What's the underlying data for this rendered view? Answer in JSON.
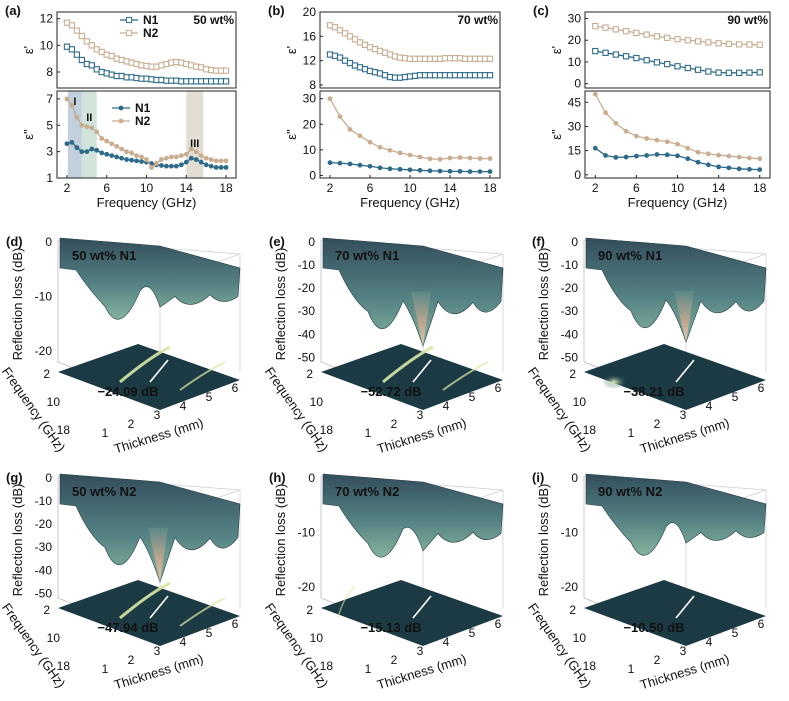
{
  "colors": {
    "n1": "#2e6b8a",
    "n2": "#c9ad90",
    "shade_I": "#b7c8d8",
    "shade_II": "#c8dfd6",
    "shade_III": "#ded8cc",
    "surface_dark": "#2d4a56",
    "surface_mid": "#5f8f8a",
    "surface_light": "#d9c2a4",
    "floor": "#1c3a44",
    "floor_glow": "#d8e8a6"
  },
  "line_panels": [
    {
      "label": "(a)",
      "wt": "50 wt%",
      "top": {
        "ylabel": "ε'",
        "yticks": [
          "8",
          "10",
          "12"
        ],
        "ymin": 6.8,
        "ymax": 12.5,
        "legend": [
          "N1",
          "N2"
        ],
        "series": [
          {
            "name": "N1",
            "x": [
              2,
              2.5,
              3,
              3.5,
              4,
              4.5,
              5,
              5.5,
              6,
              6.5,
              7,
              7.5,
              8,
              8.5,
              9,
              9.5,
              10,
              10.5,
              11,
              11.5,
              12,
              12.5,
              13,
              13.5,
              14,
              14.5,
              15,
              15.5,
              16,
              16.5,
              17,
              17.5,
              18
            ],
            "y": [
              9.9,
              9.7,
              9.3,
              8.9,
              8.6,
              8.5,
              8.2,
              8.0,
              7.9,
              7.8,
              7.7,
              7.7,
              7.6,
              7.6,
              7.55,
              7.5,
              7.5,
              7.45,
              7.4,
              7.4,
              7.35,
              7.35,
              7.35,
              7.3,
              7.3,
              7.3,
              7.3,
              7.3,
              7.3,
              7.3,
              7.3,
              7.3,
              7.3
            ]
          },
          {
            "name": "N2",
            "x": [
              2,
              2.5,
              3,
              3.5,
              4,
              4.5,
              5,
              5.5,
              6,
              6.5,
              7,
              7.5,
              8,
              8.5,
              9,
              9.5,
              10,
              10.5,
              11,
              11.5,
              12,
              12.5,
              13,
              13.5,
              14,
              14.5,
              15,
              15.5,
              16,
              16.5,
              17,
              17.5,
              18
            ],
            "y": [
              11.7,
              11.5,
              11.1,
              10.7,
              10.3,
              10.0,
              9.7,
              9.5,
              9.3,
              9.2,
              9.0,
              8.9,
              8.8,
              8.7,
              8.6,
              8.5,
              8.45,
              8.4,
              8.4,
              8.5,
              8.6,
              8.7,
              8.75,
              8.7,
              8.6,
              8.5,
              8.4,
              8.35,
              8.2,
              8.15,
              8.1,
              8.1,
              8.1
            ]
          }
        ]
      },
      "bottom": {
        "ylabel": "ε\"",
        "yticks": [
          "1",
          "3",
          "5",
          "7"
        ],
        "ymin": 1,
        "ymax": 7.6,
        "legend": [
          "N1",
          "N2"
        ],
        "regions": [
          {
            "label": "I",
            "x0": 2.1,
            "x1": 3.5,
            "color": "shade_I"
          },
          {
            "label": "II",
            "x0": 3.5,
            "x1": 5.0,
            "color": "shade_II"
          },
          {
            "label": "III",
            "x0": 14.0,
            "x1": 15.7,
            "color": "shade_III"
          }
        ],
        "series": [
          {
            "name": "N1",
            "x": [
              2,
              2.5,
              3,
              3.5,
              4,
              4.5,
              5,
              5.5,
              6,
              6.5,
              7,
              7.5,
              8,
              8.5,
              9,
              9.5,
              10,
              10.5,
              11,
              11.5,
              12,
              12.5,
              13,
              13.5,
              14,
              14.5,
              15,
              15.5,
              16,
              16.5,
              17,
              17.5,
              18
            ],
            "y": [
              3.6,
              3.7,
              3.3,
              3.0,
              3.0,
              3.2,
              3.1,
              2.9,
              2.8,
              2.7,
              2.6,
              2.5,
              2.4,
              2.35,
              2.3,
              2.25,
              2.2,
              2.1,
              2.0,
              1.95,
              1.9,
              1.9,
              1.9,
              2.0,
              2.2,
              2.5,
              2.4,
              2.2,
              2.0,
              1.9,
              1.8,
              1.8,
              1.8
            ]
          },
          {
            "name": "N2",
            "x": [
              2,
              2.5,
              3,
              3.5,
              4,
              4.5,
              5,
              5.5,
              6,
              6.5,
              7,
              7.5,
              8,
              8.5,
              9,
              9.5,
              10,
              10.5,
              11,
              11.5,
              12,
              12.5,
              13,
              13.5,
              14,
              14.5,
              15,
              15.5,
              16,
              16.5,
              17,
              17.5,
              18
            ],
            "y": [
              7.0,
              6.5,
              5.6,
              5.0,
              4.9,
              4.8,
              4.5,
              4.0,
              3.8,
              3.6,
              3.4,
              3.2,
              3.0,
              2.9,
              2.7,
              2.6,
              2.4,
              1.8,
              2.1,
              2.4,
              2.5,
              2.6,
              2.6,
              2.7,
              2.8,
              3.2,
              3.0,
              2.7,
              2.5,
              2.4,
              2.3,
              2.3,
              2.3
            ]
          }
        ]
      },
      "xlabel": "Frequency (GHz)",
      "xticks": [
        "2",
        "6",
        "10",
        "14",
        "18"
      ]
    },
    {
      "label": "(b)",
      "wt": "70 wt%",
      "top": {
        "ylabel": "ε'",
        "yticks": [
          "8",
          "12",
          "16",
          "20"
        ],
        "ymin": 7.5,
        "ymax": 20,
        "series": [
          {
            "name": "N1",
            "x": [
              2,
              2.5,
              3,
              3.5,
              4,
              4.5,
              5,
              5.5,
              6,
              6.5,
              7,
              7.5,
              8,
              8.5,
              9,
              9.5,
              10,
              10.5,
              11,
              11.5,
              12,
              12.5,
              13,
              13.5,
              14,
              14.5,
              15,
              15.5,
              16,
              16.5,
              17,
              17.5,
              18
            ],
            "y": [
              13.0,
              12.8,
              12.5,
              12.0,
              11.6,
              11.2,
              10.9,
              10.6,
              10.3,
              10.1,
              9.9,
              9.6,
              9.3,
              9.2,
              9.2,
              9.3,
              9.4,
              9.5,
              9.6,
              9.6,
              9.6,
              9.6,
              9.6,
              9.6,
              9.6,
              9.6,
              9.6,
              9.6,
              9.6,
              9.6,
              9.6,
              9.6,
              9.6
            ]
          },
          {
            "name": "N2",
            "x": [
              2,
              2.5,
              3,
              3.5,
              4,
              4.5,
              5,
              5.5,
              6,
              6.5,
              7,
              7.5,
              8,
              8.5,
              9,
              9.5,
              10,
              10.5,
              11,
              11.5,
              12,
              12.5,
              13,
              13.5,
              14,
              14.5,
              15,
              15.5,
              16,
              16.5,
              17,
              17.5,
              18
            ],
            "y": [
              17.8,
              17.5,
              17.0,
              16.5,
              16.0,
              15.5,
              15.0,
              14.6,
              14.2,
              13.9,
              13.6,
              13.3,
              13.0,
              12.7,
              12.5,
              12.4,
              12.3,
              12.3,
              12.3,
              12.3,
              12.3,
              12.3,
              12.3,
              12.4,
              12.4,
              12.4,
              12.4,
              12.3,
              12.3,
              12.3,
              12.3,
              12.3,
              12.3
            ]
          }
        ]
      },
      "bottom": {
        "ylabel": "ε\"",
        "yticks": [
          "0",
          "10",
          "20",
          "30"
        ],
        "ymin": -1,
        "ymax": 33,
        "series": [
          {
            "name": "N1",
            "x": [
              2,
              3,
              4,
              5,
              6,
              7,
              8,
              9,
              10,
              11,
              12,
              13,
              14,
              15,
              16,
              17,
              18
            ],
            "y": [
              5.0,
              4.8,
              4.5,
              4.0,
              3.6,
              3.0,
              2.6,
              2.4,
              2.2,
              2.0,
              1.8,
              1.7,
              1.6,
              1.6,
              1.5,
              1.5,
              1.5
            ]
          },
          {
            "name": "N2",
            "x": [
              2,
              3,
              4,
              5,
              6,
              7,
              8,
              9,
              10,
              11,
              12,
              13,
              14,
              15,
              16,
              17,
              18
            ],
            "y": [
              30.0,
              23.0,
              18.0,
              15.5,
              13.0,
              11.0,
              9.8,
              8.8,
              8.0,
              7.2,
              6.5,
              6.3,
              6.8,
              7.0,
              6.8,
              6.6,
              6.6
            ]
          }
        ]
      },
      "xlabel": "Frequency (GHz)",
      "xticks": [
        "2",
        "6",
        "10",
        "14",
        "18"
      ]
    },
    {
      "label": "(c)",
      "wt": "90 wt%",
      "top": {
        "ylabel": "ε'",
        "yticks": [
          "0",
          "10",
          "20",
          "30"
        ],
        "ymin": -2,
        "ymax": 33,
        "series": [
          {
            "name": "N1",
            "x": [
              2,
              3,
              4,
              5,
              6,
              7,
              8,
              9,
              10,
              11,
              12,
              13,
              14,
              15,
              16,
              17,
              18
            ],
            "y": [
              15.0,
              14.2,
              13.4,
              12.6,
              11.8,
              10.8,
              9.8,
              9.0,
              8.0,
              7.2,
              6.4,
              5.6,
              5.1,
              5.0,
              5.0,
              5.1,
              5.2
            ]
          },
          {
            "name": "N2",
            "x": [
              2,
              3,
              4,
              5,
              6,
              7,
              8,
              9,
              10,
              11,
              12,
              13,
              14,
              15,
              16,
              17,
              18
            ],
            "y": [
              26.5,
              25.8,
              25.0,
              24.2,
              23.4,
              22.6,
              21.8,
              21.1,
              20.5,
              20.0,
              19.5,
              19.0,
              18.6,
              18.3,
              18.1,
              18.0,
              17.9
            ]
          }
        ]
      },
      "bottom": {
        "ylabel": "ε\"",
        "yticks": [
          "0",
          "15",
          "30",
          "45"
        ],
        "ymin": -2,
        "ymax": 52,
        "series": [
          {
            "name": "N1",
            "x": [
              2,
              3,
              4,
              5,
              6,
              7,
              8,
              9,
              10,
              11,
              12,
              13,
              14,
              15,
              16,
              17,
              18
            ],
            "y": [
              16.5,
              12.0,
              10.8,
              11.0,
              11.6,
              12.0,
              12.6,
              12.4,
              11.8,
              10.0,
              7.8,
              6.2,
              4.9,
              4.3,
              3.7,
              3.4,
              3.2
            ]
          },
          {
            "name": "N2",
            "x": [
              2,
              3,
              4,
              5,
              6,
              7,
              8,
              9,
              10,
              11,
              12,
              13,
              14,
              15,
              16,
              17,
              18
            ],
            "y": [
              50.0,
              38.5,
              32.0,
              27.0,
              24.0,
              22.5,
              21.5,
              20.5,
              19.0,
              16.5,
              14.0,
              13.0,
              12.2,
              11.6,
              11.0,
              10.4,
              10.0
            ]
          }
        ]
      },
      "xlabel": "Frequency (GHz)",
      "xticks": [
        "2",
        "6",
        "10",
        "14",
        "18"
      ]
    }
  ],
  "surface_panels": [
    {
      "label": "(d)",
      "title": "50 wt% N1",
      "annotation": "−24.09 dB",
      "zticks": [
        "0",
        "-10",
        "-20"
      ],
      "zmin": -24.09,
      "depth": 0.45,
      "glow": "arc-upper"
    },
    {
      "label": "(e)",
      "title": "70 wt% N1",
      "annotation": "−52.72 dB",
      "zticks": [
        "0",
        "-10",
        "-20",
        "-30",
        "-40",
        "-50"
      ],
      "zmin": -52.72,
      "depth": 0.95,
      "glow": "arc-upper"
    },
    {
      "label": "(f)",
      "title": "90 wt% N1",
      "annotation": "−38.21 dB",
      "zticks": [
        "0",
        "-10",
        "-20",
        "-30",
        "-40",
        "-50"
      ],
      "zmin": -38.21,
      "depth": 0.9,
      "glow": "spot-lower"
    },
    {
      "label": "(g)",
      "title": "50 wt% N2",
      "annotation": "−47.94 dB",
      "zticks": [
        "0",
        "-10",
        "-20",
        "-30",
        "-40",
        "-50"
      ],
      "zmin": -47.94,
      "depth": 0.95,
      "glow": "arc-upper"
    },
    {
      "label": "(h)",
      "title": "70 wt% N2",
      "annotation": "−15.13 dB",
      "zticks": [
        "0",
        "-10",
        "-20"
      ],
      "zmin": -15.13,
      "depth": 0.55,
      "glow": "faint"
    },
    {
      "label": "(i)",
      "title": "90 wt% N2",
      "annotation": "−10.50 dB",
      "zticks": [
        "0",
        "-10",
        "-20"
      ],
      "zmin": -10.5,
      "depth": 0.45,
      "glow": "none"
    }
  ],
  "surface_axes": {
    "zlabel": "Reflection loss (dB)",
    "freq_label": "Frequency (GHz)",
    "thick_label": "Thickness (mm)",
    "freq_ticks": [
      "2",
      "10",
      "18"
    ],
    "thick_ticks": [
      "1",
      "2",
      "3",
      "4",
      "5",
      "6"
    ]
  },
  "chart_data": [
    {
      "type": "line",
      "panel": "(a)",
      "subtitle": "50 wt%",
      "xlabel": "Frequency (GHz)",
      "ylabel": "ε' / ε\"",
      "note": "see line_panels[0]"
    },
    {
      "type": "line",
      "panel": "(b)",
      "subtitle": "70 wt%",
      "xlabel": "Frequency (GHz)",
      "ylabel": "ε' / ε\"",
      "note": "see line_panels[1]"
    },
    {
      "type": "line",
      "panel": "(c)",
      "subtitle": "90 wt%",
      "xlabel": "Frequency (GHz)",
      "ylabel": "ε' / ε\"",
      "note": "see line_panels[2]"
    },
    {
      "type": "surface",
      "panels": [
        "(d)",
        "(e)",
        "(f)",
        "(g)",
        "(h)",
        "(i)"
      ],
      "min_rl_db": [
        -24.09,
        -52.72,
        -38.21,
        -47.94,
        -15.13,
        -10.5
      ],
      "xlabel": "Thickness (mm)",
      "ylabel": "Frequency (GHz)",
      "zlabel": "Reflection loss (dB)"
    }
  ]
}
